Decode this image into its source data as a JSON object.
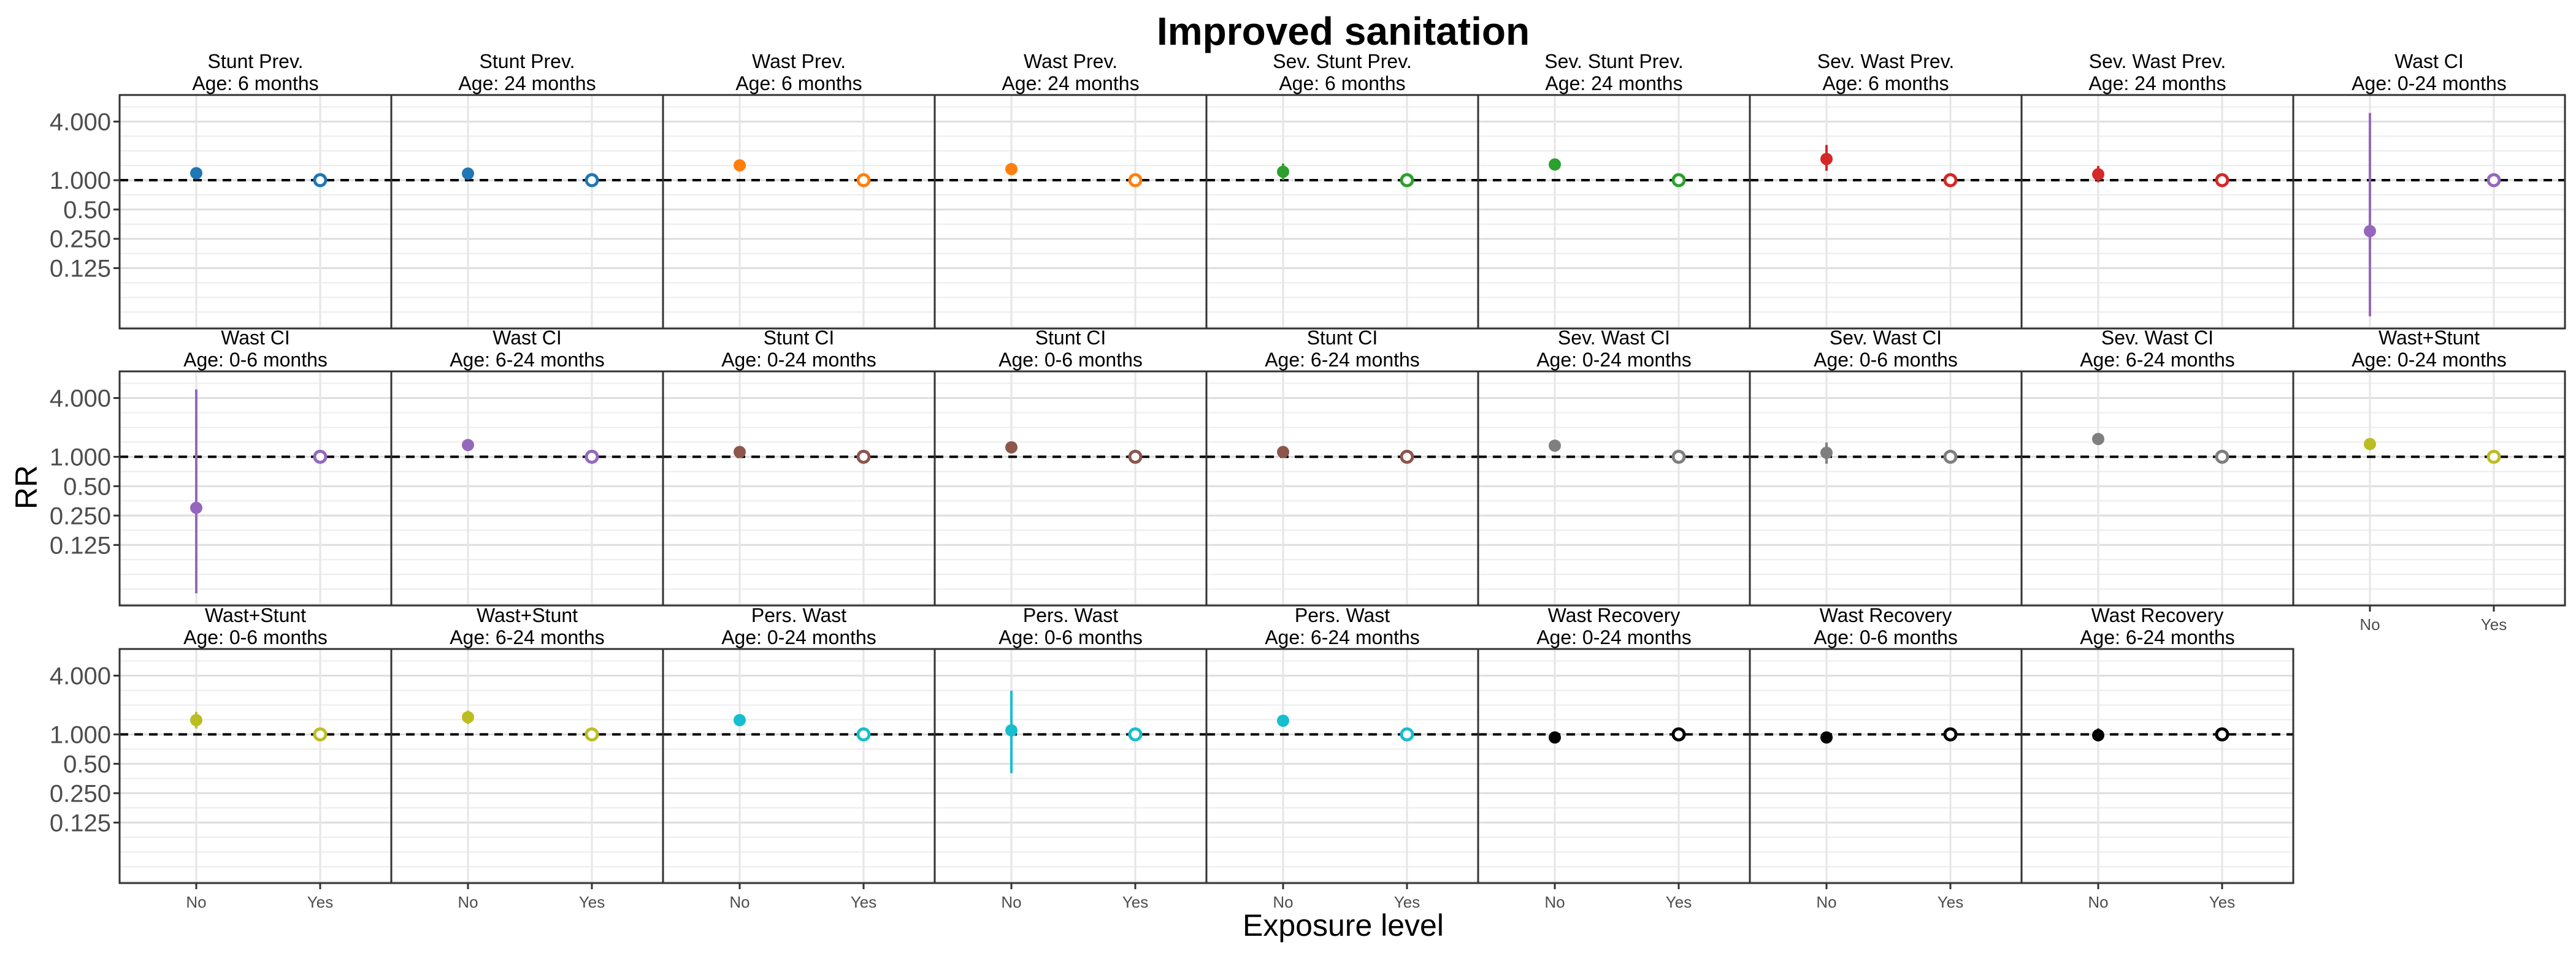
{
  "figure": {
    "title": "Improved sanitation",
    "xlabel": "Exposure level",
    "ylabel": "RR"
  },
  "axis": {
    "scale": "log2",
    "ylim": [
      0.03,
      7.5
    ],
    "yticks": [
      0.125,
      0.25,
      0.5,
      1,
      4
    ],
    "ytick_labels": [
      "0.125",
      "0.250",
      "0.50",
      "1.000",
      "4.000"
    ],
    "reference_line": 1,
    "categories": [
      "No",
      "Yes"
    ],
    "grid": true
  },
  "chart_data": [
    {
      "type": "scatter",
      "facet_line1": "Stunt Prev.",
      "facet_line2": "Age: 6 months",
      "color": "#1f77b4",
      "points": [
        {
          "x": "No",
          "y": 1.18,
          "lo": 1.08,
          "hi": 1.29
        },
        {
          "x": "Yes",
          "y": 1.0
        }
      ]
    },
    {
      "type": "scatter",
      "facet_line1": "Stunt Prev.",
      "facet_line2": "Age: 24 months",
      "color": "#1f77b4",
      "points": [
        {
          "x": "No",
          "y": 1.17,
          "lo": 1.08,
          "hi": 1.27
        },
        {
          "x": "Yes",
          "y": 1.0
        }
      ]
    },
    {
      "type": "scatter",
      "facet_line1": "Wast Prev.",
      "facet_line2": "Age: 6 months",
      "color": "#ff7f0e",
      "points": [
        {
          "x": "No",
          "y": 1.42,
          "lo": 1.28,
          "hi": 1.58
        },
        {
          "x": "Yes",
          "y": 1.0
        }
      ]
    },
    {
      "type": "scatter",
      "facet_line1": "Wast Prev.",
      "facet_line2": "Age: 24 months",
      "color": "#ff7f0e",
      "points": [
        {
          "x": "No",
          "y": 1.3,
          "lo": 1.18,
          "hi": 1.43
        },
        {
          "x": "Yes",
          "y": 1.0
        }
      ]
    },
    {
      "type": "scatter",
      "facet_line1": "Sev. Stunt Prev.",
      "facet_line2": "Age: 6 months",
      "color": "#2ca02c",
      "points": [
        {
          "x": "No",
          "y": 1.22,
          "lo": 1.0,
          "hi": 1.48
        },
        {
          "x": "Yes",
          "y": 1.0
        }
      ]
    },
    {
      "type": "scatter",
      "facet_line1": "Sev. Stunt Prev.",
      "facet_line2": "Age: 24 months",
      "color": "#2ca02c",
      "points": [
        {
          "x": "No",
          "y": 1.45,
          "lo": 1.32,
          "hi": 1.6
        },
        {
          "x": "Yes",
          "y": 1.0
        }
      ]
    },
    {
      "type": "scatter",
      "facet_line1": "Sev. Wast Prev.",
      "facet_line2": "Age: 6 months",
      "color": "#d62728",
      "points": [
        {
          "x": "No",
          "y": 1.65,
          "lo": 1.25,
          "hi": 2.3
        },
        {
          "x": "Yes",
          "y": 1.0
        }
      ]
    },
    {
      "type": "scatter",
      "facet_line1": "Sev. Wast Prev.",
      "facet_line2": "Age: 24 months",
      "color": "#d62728",
      "points": [
        {
          "x": "No",
          "y": 1.15,
          "lo": 0.95,
          "hi": 1.4
        },
        {
          "x": "Yes",
          "y": 1.0
        }
      ]
    },
    {
      "type": "scatter",
      "facet_line1": "Wast CI",
      "facet_line2": "Age: 0-24 months",
      "color": "#9467bd",
      "points": [
        {
          "x": "No",
          "y": 0.3,
          "lo": 0.04,
          "hi": 4.9
        },
        {
          "x": "Yes",
          "y": 1.0
        }
      ]
    },
    {
      "type": "scatter",
      "facet_line1": "Wast CI",
      "facet_line2": "Age: 0-6 months",
      "color": "#9467bd",
      "points": [
        {
          "x": "No",
          "y": 0.3,
          "lo": 0.04,
          "hi": 4.9
        },
        {
          "x": "Yes",
          "y": 1.0
        }
      ]
    },
    {
      "type": "scatter",
      "facet_line1": "Wast CI",
      "facet_line2": "Age: 6-24 months",
      "color": "#9467bd",
      "points": [
        {
          "x": "No",
          "y": 1.32,
          "lo": 1.2,
          "hi": 1.45
        },
        {
          "x": "Yes",
          "y": 1.0
        }
      ]
    },
    {
      "type": "scatter",
      "facet_line1": "Stunt CI",
      "facet_line2": "Age: 0-24 months",
      "color": "#8c564b",
      "points": [
        {
          "x": "No",
          "y": 1.12,
          "lo": 1.03,
          "hi": 1.22
        },
        {
          "x": "Yes",
          "y": 1.0
        }
      ]
    },
    {
      "type": "scatter",
      "facet_line1": "Stunt CI",
      "facet_line2": "Age: 0-6 months",
      "color": "#8c564b",
      "points": [
        {
          "x": "No",
          "y": 1.25,
          "lo": 1.1,
          "hi": 1.42
        },
        {
          "x": "Yes",
          "y": 1.0
        }
      ]
    },
    {
      "type": "scatter",
      "facet_line1": "Stunt CI",
      "facet_line2": "Age: 6-24 months",
      "color": "#8c564b",
      "points": [
        {
          "x": "No",
          "y": 1.12,
          "lo": 1.03,
          "hi": 1.22
        },
        {
          "x": "Yes",
          "y": 1.0
        }
      ]
    },
    {
      "type": "scatter",
      "facet_line1": "Sev. Wast CI",
      "facet_line2": "Age: 0-24 months",
      "color": "#7f7f7f",
      "points": [
        {
          "x": "No",
          "y": 1.3,
          "lo": 1.18,
          "hi": 1.42
        },
        {
          "x": "Yes",
          "y": 1.0
        }
      ]
    },
    {
      "type": "scatter",
      "facet_line1": "Sev. Wast CI",
      "facet_line2": "Age: 0-6 months",
      "color": "#7f7f7f",
      "points": [
        {
          "x": "No",
          "y": 1.1,
          "lo": 0.85,
          "hi": 1.4
        },
        {
          "x": "Yes",
          "y": 1.0
        }
      ]
    },
    {
      "type": "scatter",
      "facet_line1": "Sev. Wast CI",
      "facet_line2": "Age: 6-24 months",
      "color": "#7f7f7f",
      "points": [
        {
          "x": "No",
          "y": 1.52,
          "lo": 1.35,
          "hi": 1.7
        },
        {
          "x": "Yes",
          "y": 1.0
        }
      ]
    },
    {
      "type": "scatter",
      "facet_line1": "Wast+Stunt",
      "facet_line2": "Age: 0-24 months",
      "color": "#bcbd22",
      "points": [
        {
          "x": "No",
          "y": 1.35,
          "lo": 1.2,
          "hi": 1.52
        },
        {
          "x": "Yes",
          "y": 1.0
        }
      ]
    },
    {
      "type": "scatter",
      "facet_line1": "Wast+Stunt",
      "facet_line2": "Age: 0-6 months",
      "color": "#bcbd22",
      "points": [
        {
          "x": "No",
          "y": 1.4,
          "lo": 1.15,
          "hi": 1.7
        },
        {
          "x": "Yes",
          "y": 1.0
        }
      ]
    },
    {
      "type": "scatter",
      "facet_line1": "Wast+Stunt",
      "facet_line2": "Age: 6-24 months",
      "color": "#bcbd22",
      "points": [
        {
          "x": "No",
          "y": 1.5,
          "lo": 1.28,
          "hi": 1.75
        },
        {
          "x": "Yes",
          "y": 1.0
        }
      ]
    },
    {
      "type": "scatter",
      "facet_line1": "Pers. Wast",
      "facet_line2": "Age: 0-24 months",
      "color": "#17becf",
      "points": [
        {
          "x": "No",
          "y": 1.4,
          "lo": 1.28,
          "hi": 1.55
        },
        {
          "x": "Yes",
          "y": 1.0
        }
      ]
    },
    {
      "type": "scatter",
      "facet_line1": "Pers. Wast",
      "facet_line2": "Age: 0-6 months",
      "color": "#17becf",
      "points": [
        {
          "x": "No",
          "y": 1.1,
          "lo": 0.4,
          "hi": 2.8
        },
        {
          "x": "Yes",
          "y": 1.0
        }
      ]
    },
    {
      "type": "scatter",
      "facet_line1": "Pers. Wast",
      "facet_line2": "Age: 6-24 months",
      "color": "#17becf",
      "points": [
        {
          "x": "No",
          "y": 1.38,
          "lo": 1.25,
          "hi": 1.52
        },
        {
          "x": "Yes",
          "y": 1.0
        }
      ]
    },
    {
      "type": "scatter",
      "facet_line1": "Wast Recovery",
      "facet_line2": "Age: 0-24 months",
      "color": "#000000",
      "points": [
        {
          "x": "No",
          "y": 0.93,
          "lo": 0.88,
          "hi": 0.98
        },
        {
          "x": "Yes",
          "y": 1.0
        }
      ]
    },
    {
      "type": "scatter",
      "facet_line1": "Wast Recovery",
      "facet_line2": "Age: 0-6 months",
      "color": "#000000",
      "points": [
        {
          "x": "No",
          "y": 0.93,
          "lo": 0.87,
          "hi": 0.99
        },
        {
          "x": "Yes",
          "y": 1.0
        }
      ]
    },
    {
      "type": "scatter",
      "facet_line1": "Wast Recovery",
      "facet_line2": "Age: 6-24 months",
      "color": "#000000",
      "points": [
        {
          "x": "No",
          "y": 0.98,
          "lo": 0.85,
          "hi": 1.15
        },
        {
          "x": "Yes",
          "y": 1.0
        }
      ]
    }
  ]
}
